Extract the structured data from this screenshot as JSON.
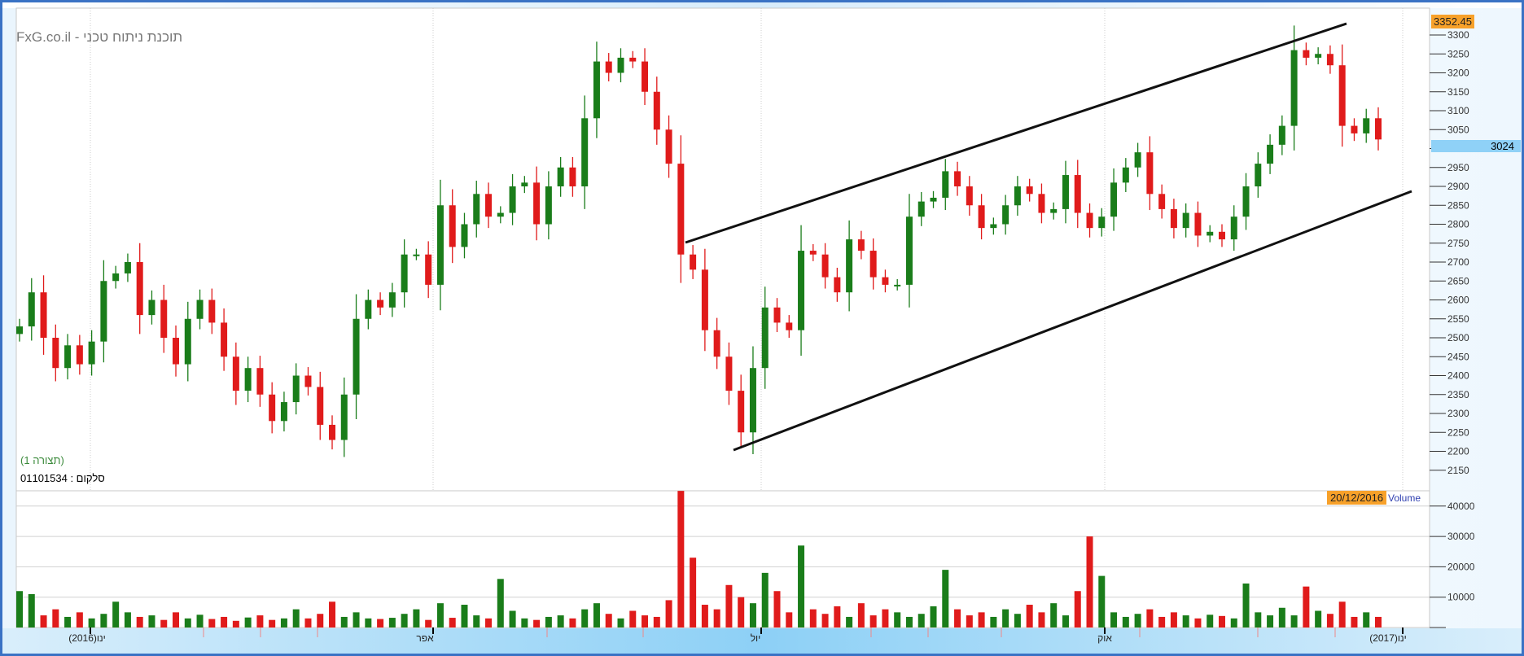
{
  "title": "FxG.co.il - תוכנת ניתוח טכני",
  "config_label": "(תצורה 1)",
  "symbol_label": "סלקום : 01101534",
  "last_high_label": "3352.45",
  "current_price_label": "3024",
  "volume_date_label": "20/12/2016",
  "volume_label": "Volume",
  "colors": {
    "up": "#1a7d1a",
    "down": "#e01b1b",
    "accent": "#f7a12a",
    "current": "#8fd1f7",
    "frame": "#3a72c4"
  },
  "chart_data": {
    "type": "candlestick",
    "price_axis": {
      "ticks": [
        3300,
        3250,
        3200,
        3150,
        3100,
        3050,
        3000,
        2950,
        2900,
        2850,
        2800,
        2750,
        2700,
        2650,
        2600,
        2550,
        2500,
        2450,
        2400,
        2350,
        2300,
        2250,
        2200,
        2150
      ]
    },
    "volume_axis": {
      "ticks": [
        40000,
        30000,
        20000,
        10000
      ]
    },
    "x_ticks": [
      "ינו(2016)",
      "אפר",
      "יול",
      "אוק",
      "ינו(2017)"
    ],
    "close": [
      2530,
      2620,
      2500,
      2420,
      2480,
      2430,
      2490,
      2650,
      2670,
      2700,
      2560,
      2600,
      2500,
      2430,
      2550,
      2600,
      2540,
      2450,
      2360,
      2420,
      2350,
      2280,
      2330,
      2400,
      2370,
      2270,
      2230,
      2350,
      2550,
      2600,
      2580,
      2620,
      2720,
      2720,
      2640,
      2850,
      2740,
      2800,
      2880,
      2820,
      2830,
      2900,
      2910,
      2800,
      2900,
      2950,
      2900,
      3080,
      3230,
      3200,
      3240,
      3230,
      3150,
      3050,
      2960,
      2720,
      2680,
      2520,
      2450,
      2360,
      2250,
      2420,
      2580,
      2540,
      2520,
      2730,
      2720,
      2660,
      2620,
      2760,
      2730,
      2660,
      2640,
      2640,
      2820,
      2860,
      2870,
      2940,
      2900,
      2850,
      2790,
      2800,
      2850,
      2900,
      2880,
      2830,
      2840,
      2930,
      2830,
      2790,
      2820,
      2910,
      2950,
      2990,
      2880,
      2840,
      2790,
      2830,
      2770,
      2780,
      2760,
      2820,
      2900,
      2960,
      3010,
      3060,
      3260,
      3240,
      3250,
      3220,
      3060,
      3040,
      3080,
      3024
    ],
    "volume": [
      12000,
      11000,
      4000,
      6000,
      3500,
      5000,
      3000,
      4500,
      8500,
      5000,
      3500,
      4000,
      2500,
      5000,
      3000,
      4200,
      2800,
      3500,
      2200,
      3300,
      4000,
      2500,
      3000,
      6000,
      3000,
      4500,
      8500,
      3500,
      5000,
      3000,
      2800,
      3200,
      4500,
      6000,
      2500,
      8000,
      3200,
      7500,
      4000,
      3000,
      16000,
      5500,
      3000,
      2500,
      3500,
      4000,
      3000,
      6000,
      8000,
      4500,
      3000,
      5500,
      4000,
      3500,
      9000,
      45000,
      23000,
      7500,
      6000,
      14000,
      10000,
      8000,
      18000,
      12000,
      5000,
      27000,
      6000,
      4500,
      7000,
      3500,
      8000,
      4000,
      6000,
      5000,
      3500,
      4500,
      7000,
      19000,
      6000,
      4000,
      5000,
      3500,
      6000,
      4500,
      7500,
      5000,
      8000,
      4000,
      12000,
      30000,
      17000,
      5000,
      3500,
      4500,
      6000,
      3500,
      5000,
      4000,
      3000,
      4200,
      3800,
      3000,
      14500,
      5000,
      4000,
      6500,
      4000,
      13500,
      5500,
      4500,
      8500,
      3500,
      5000,
      3500
    ],
    "trendlines": [
      {
        "name": "channel-upper",
        "from": {
          "date": "2016-06-27",
          "price": 2750
        },
        "to": {
          "date": "2016-12-14",
          "price": 3330
        }
      },
      {
        "name": "channel-lower",
        "from": {
          "date": "2016-07-06",
          "price": 2200
        },
        "to": {
          "date": "2016-12-31",
          "price": 2880
        }
      }
    ]
  }
}
